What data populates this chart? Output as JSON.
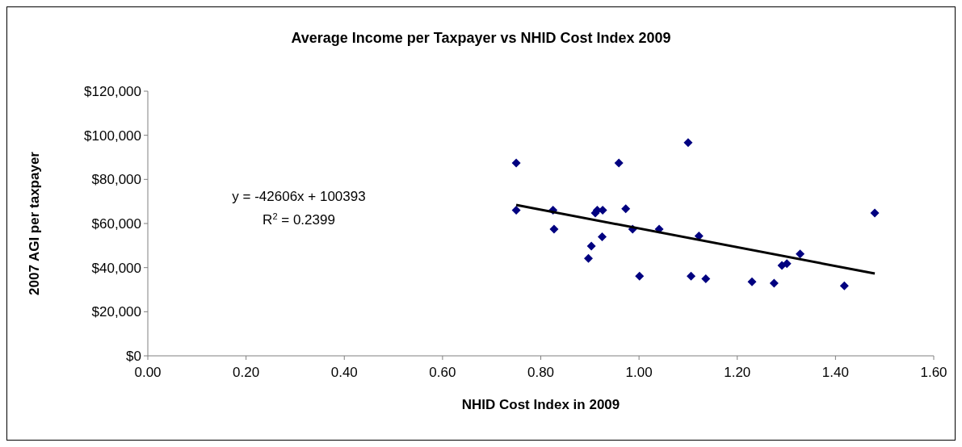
{
  "chart_data": {
    "type": "scatter",
    "title": "Average Income per Taxpayer vs NHID Cost Index 2009",
    "xlabel": "NHID Cost Index in 2009",
    "ylabel": "2007 AGI per taxpayer",
    "xlim": [
      0,
      1.6
    ],
    "xticks": [
      {
        "value": 0,
        "label": "0.00"
      },
      {
        "value": 0.2,
        "label": "0.20"
      },
      {
        "value": 0.4,
        "label": "0.40"
      },
      {
        "value": 0.6,
        "label": "0.60"
      },
      {
        "value": 0.8,
        "label": "0.80"
      },
      {
        "value": 1,
        "label": "1.00"
      },
      {
        "value": 1.2,
        "label": "1.20"
      },
      {
        "value": 1.4,
        "label": "1.40"
      },
      {
        "value": 1.6,
        "label": "1.60"
      }
    ],
    "ylim": [
      0,
      120000
    ],
    "yticks": [
      {
        "value": 0,
        "label": "$0"
      },
      {
        "value": 20000,
        "label": "$20,000"
      },
      {
        "value": 40000,
        "label": "$40,000"
      },
      {
        "value": 60000,
        "label": "$60,000"
      },
      {
        "value": 80000,
        "label": "$80,000"
      },
      {
        "value": 100000,
        "label": "$100,000"
      },
      {
        "value": 120000,
        "label": "$120,000"
      }
    ],
    "grid": false,
    "marker": "diamond",
    "series": [
      {
        "color": "#000080",
        "x": [
          0.75,
          0.75,
          0.825,
          0.827,
          0.911,
          0.915,
          0.926,
          0.925,
          0.903,
          0.897,
          0.959,
          0.973,
          0.987,
          1.001,
          1.041,
          1.1,
          1.106,
          1.122,
          1.136,
          1.23,
          1.275,
          1.291,
          1.301,
          1.328,
          1.418,
          1.48
        ],
        "values": [
          87400,
          66000,
          66000,
          57400,
          64800,
          66000,
          66000,
          54000,
          49800,
          44200,
          87400,
          66700,
          57400,
          36100,
          57400,
          96700,
          36100,
          54300,
          34900,
          33600,
          32900,
          41000,
          41800,
          46200,
          31700,
          64800
        ]
      },
      {
        "type": "line",
        "color": "#000000",
        "marker": "none",
        "line_style": "solid",
        "x": [
          0.75,
          1.48
        ],
        "values": [
          68400,
          37300
        ]
      }
    ],
    "annotations": [
      "y = -42606x + 100393",
      "R$^{2}$ = 0.2399"
    ]
  }
}
